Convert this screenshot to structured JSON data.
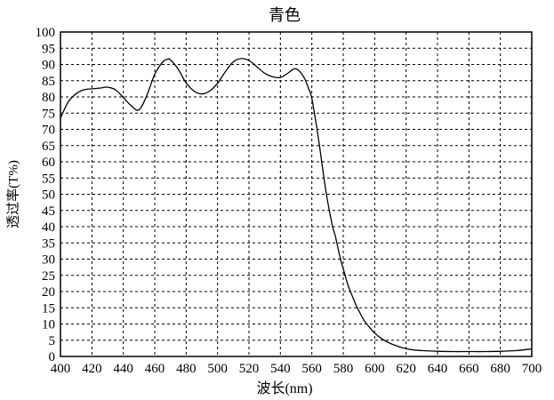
{
  "colors": {
    "background": "#ffffff",
    "line": "#000000",
    "grid": "#000000",
    "border": "#000000",
    "text": "#000000"
  },
  "chart_data": {
    "type": "line",
    "title": "青色",
    "xlabel": "波长(nm)",
    "ylabel": "透过率(T%)",
    "xlim": [
      400,
      700
    ],
    "ylim": [
      0,
      100
    ],
    "x_ticks": [
      400,
      420,
      440,
      460,
      480,
      500,
      520,
      540,
      560,
      580,
      600,
      620,
      640,
      660,
      680,
      700
    ],
    "y_ticks": [
      0,
      5,
      10,
      15,
      20,
      25,
      30,
      35,
      40,
      45,
      50,
      55,
      60,
      65,
      70,
      75,
      80,
      85,
      90,
      95,
      100
    ],
    "grid": "dashed",
    "legend": "none",
    "series": [
      {
        "name": "transmittance",
        "x": [
          400,
          405,
          410,
          415,
          420,
          425,
          430,
          435,
          440,
          445,
          450,
          455,
          460,
          465,
          468,
          470,
          475,
          480,
          485,
          490,
          495,
          500,
          505,
          510,
          515,
          520,
          525,
          530,
          535,
          540,
          545,
          548,
          551,
          555,
          558,
          560,
          563,
          565,
          568,
          570,
          573,
          575,
          578,
          580,
          583,
          585,
          588,
          590,
          593,
          595,
          600,
          605,
          610,
          615,
          620,
          625,
          630,
          640,
          650,
          660,
          670,
          680,
          690,
          700
        ],
        "y": [
          73.5,
          78.5,
          81.0,
          82.2,
          82.5,
          82.7,
          83.0,
          82.2,
          79.8,
          77.3,
          76.0,
          80.5,
          87.0,
          90.7,
          91.6,
          91.4,
          88.5,
          84.3,
          81.8,
          80.9,
          81.8,
          84.2,
          87.8,
          90.8,
          91.8,
          91.2,
          89.3,
          87.3,
          86.2,
          86.0,
          87.4,
          88.5,
          88.4,
          86.0,
          82.5,
          79.5,
          71.0,
          64.5,
          54.0,
          48.0,
          40.5,
          37.0,
          30.5,
          27.0,
          22.0,
          19.5,
          16.0,
          14.0,
          11.3,
          10.0,
          7.2,
          5.3,
          4.0,
          3.1,
          2.4,
          2.0,
          1.8,
          1.6,
          1.5,
          1.5,
          1.5,
          1.6,
          1.8,
          2.3
        ]
      }
    ]
  }
}
